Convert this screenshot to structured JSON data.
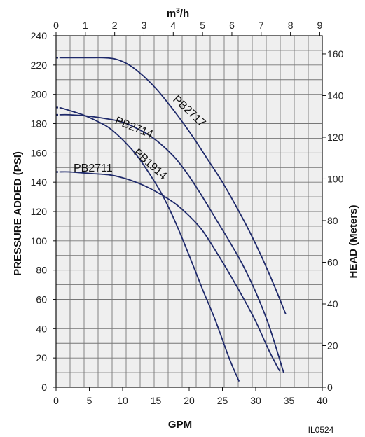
{
  "chart_data": {
    "type": "line",
    "top_axis": {
      "label_base": "m",
      "label_sup": "3",
      "label_tail": "/h",
      "ticks": [
        "0",
        "1",
        "2",
        "3",
        "4",
        "5",
        "6",
        "7",
        "8",
        "9"
      ]
    },
    "bottom_axis": {
      "label": "GPM",
      "ticks": [
        "0",
        "5",
        "10",
        "15",
        "20",
        "25",
        "30",
        "35",
        "40"
      ]
    },
    "left_axis": {
      "label": "PRESSURE ADDED (PSI)",
      "ticks": [
        "0",
        "20",
        "40",
        "60",
        "80",
        "100",
        "120",
        "140",
        "160",
        "180",
        "200",
        "220",
        "240"
      ]
    },
    "right_axis": {
      "label": "HEAD (Meters)",
      "ticks": [
        "0",
        "20",
        "40",
        "60",
        "80",
        "100",
        "120",
        "140",
        "160"
      ]
    },
    "xlim": [
      0,
      40
    ],
    "ylim": [
      0,
      240
    ],
    "grid": true,
    "series": [
      {
        "name": "PB2717",
        "shutoff_psi": 225,
        "x": [
          0.5,
          2,
          5,
          7,
          9,
          11,
          13,
          15,
          17,
          19,
          21,
          23,
          25,
          27,
          29,
          31,
          33,
          34.5
        ],
        "y": [
          225,
          225,
          225,
          225,
          224,
          220,
          213,
          204,
          193,
          181,
          168,
          154,
          140,
          124,
          107,
          88,
          67,
          50
        ]
      },
      {
        "name": "PB2714",
        "shutoff_psi": 186,
        "x": [
          0.5,
          2,
          5,
          8,
          10,
          12,
          14,
          16,
          18,
          20,
          22,
          24,
          26,
          28,
          30,
          32,
          34.2
        ],
        "y": [
          186,
          186,
          185,
          183,
          181,
          177,
          172,
          165,
          156,
          144,
          130,
          115,
          100,
          84,
          65,
          42,
          10
        ]
      },
      {
        "name": "PB1914",
        "shutoff_psi": 191,
        "x": [
          0.5,
          2,
          4,
          6,
          8,
          10,
          12,
          14,
          16,
          18,
          20,
          22,
          24,
          26,
          27.5
        ],
        "y": [
          191,
          189,
          186,
          182,
          177,
          169,
          159,
          146,
          131,
          112,
          90,
          67,
          45,
          20,
          4
        ]
      },
      {
        "name": "PB2711",
        "shutoff_psi": 147,
        "x": [
          0.5,
          2,
          5,
          8,
          10,
          12,
          14,
          16,
          18,
          20,
          22,
          24,
          26,
          28,
          30,
          32,
          33.6
        ],
        "y": [
          147,
          147,
          146,
          145,
          143,
          140,
          136,
          131,
          125,
          117,
          107,
          93,
          78,
          62,
          45,
          25,
          11
        ]
      }
    ]
  },
  "code": "IL0524"
}
